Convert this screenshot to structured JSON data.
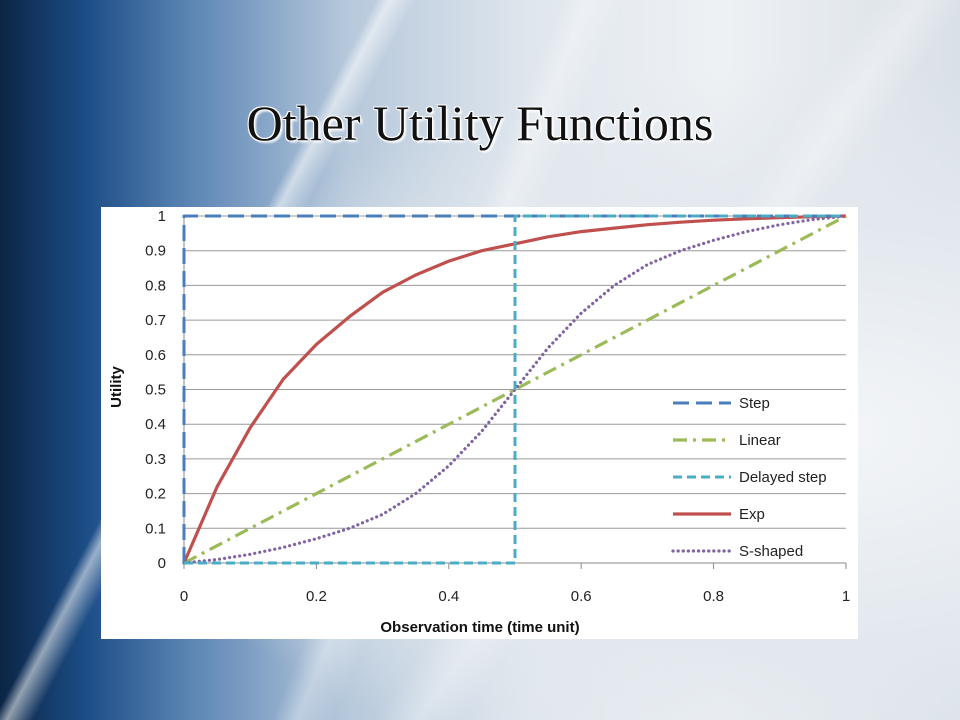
{
  "slide": {
    "title": "Other Utility Functions"
  },
  "chart_data": {
    "type": "line",
    "title": "",
    "xlabel": "Observation time (time unit)",
    "ylabel": "Utility",
    "xlim": [
      0,
      1
    ],
    "ylim": [
      0,
      1
    ],
    "x_ticks": [
      "0",
      "0.2",
      "0.4",
      "0.6",
      "0.8",
      "1"
    ],
    "y_ticks": [
      "0",
      "0.1",
      "0.2",
      "0.3",
      "0.4",
      "0.5",
      "0.6",
      "0.7",
      "0.8",
      "0.9",
      "1"
    ],
    "grid": "horizontal",
    "legend_position": "right",
    "series": [
      {
        "name": "Step",
        "color": "#4a7ebb",
        "dash": "long-dash",
        "x": [
          0,
          0,
          1
        ],
        "y": [
          0,
          1,
          1
        ]
      },
      {
        "name": "Linear",
        "color": "#9bbb59",
        "dash": "dash-dot",
        "x": [
          0,
          1
        ],
        "y": [
          0,
          1
        ]
      },
      {
        "name": "Delayed step",
        "color": "#4bacc6",
        "dash": "dash",
        "x": [
          0,
          0.5,
          0.5,
          1
        ],
        "y": [
          0,
          0,
          1,
          1
        ]
      },
      {
        "name": "Exp",
        "color": "#c0504d",
        "dash": "solid",
        "x": [
          0,
          0.05,
          0.1,
          0.15,
          0.2,
          0.25,
          0.3,
          0.35,
          0.4,
          0.45,
          0.5,
          0.55,
          0.6,
          0.65,
          0.7,
          0.75,
          0.8,
          0.85,
          0.9,
          0.95,
          1
        ],
        "y": [
          0,
          0.22,
          0.39,
          0.53,
          0.63,
          0.71,
          0.78,
          0.83,
          0.87,
          0.9,
          0.92,
          0.94,
          0.955,
          0.965,
          0.975,
          0.982,
          0.988,
          0.992,
          0.995,
          0.998,
          1
        ]
      },
      {
        "name": "S-shaped",
        "color": "#8064a2",
        "dash": "dot",
        "x": [
          0,
          0.05,
          0.1,
          0.15,
          0.2,
          0.25,
          0.3,
          0.35,
          0.4,
          0.45,
          0.5,
          0.55,
          0.6,
          0.65,
          0.7,
          0.75,
          0.8,
          0.85,
          0.9,
          0.95,
          1
        ],
        "y": [
          0,
          0.01,
          0.025,
          0.045,
          0.07,
          0.1,
          0.14,
          0.2,
          0.28,
          0.38,
          0.5,
          0.62,
          0.72,
          0.8,
          0.86,
          0.9,
          0.93,
          0.955,
          0.975,
          0.99,
          1
        ]
      }
    ]
  }
}
